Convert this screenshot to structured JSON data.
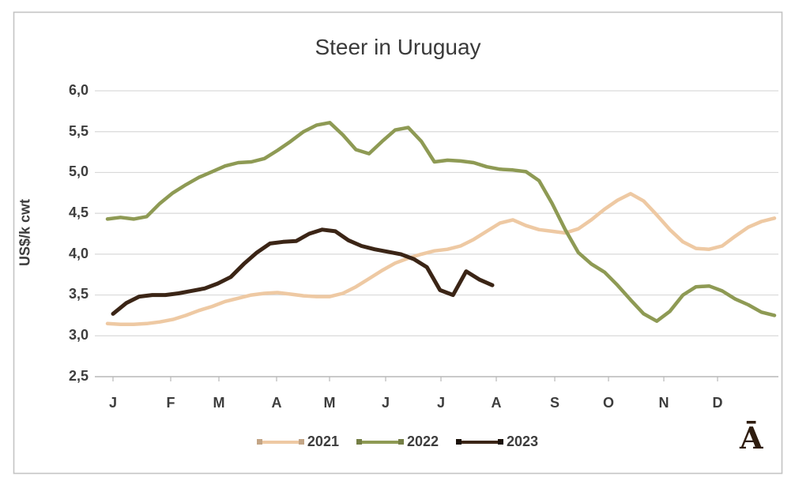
{
  "title": "Steer in Uruguay",
  "watermark": "Ā",
  "colors": {
    "series_2021": "#eec9a3",
    "series_2022": "#8e9a54",
    "series_2023": "#3b2516",
    "gridline": "#d9d9d9",
    "axis_line": "#b7b7b7",
    "frame": "#c4c4c4",
    "text": "#3d3d3d"
  },
  "chart_data": {
    "type": "line",
    "title": "Steer in Uruguay",
    "xlabel": "",
    "ylabel": "US$/k cwt",
    "ylim": [
      2.5,
      6.0
    ],
    "y_tick_step": 0.5,
    "grid": true,
    "legend_position": "bottom",
    "y_tick_labels": [
      "6,0",
      "5,5",
      "5,0",
      "4,5",
      "4,0",
      "3,5",
      "3,0",
      "2,5"
    ],
    "x_tick_labels": [
      "J",
      "F",
      "M",
      "A",
      "M",
      "J",
      "J",
      "A",
      "S",
      "O",
      "N",
      "D"
    ],
    "x_unit": "weekly points, Jan–Dec",
    "series": [
      {
        "name": "2021",
        "color": "#eec9a3",
        "months_covered": "Jan-Dec",
        "values": [
          3.15,
          3.14,
          3.14,
          3.15,
          3.17,
          3.2,
          3.25,
          3.31,
          3.36,
          3.42,
          3.46,
          3.5,
          3.52,
          3.53,
          3.51,
          3.49,
          3.48,
          3.48,
          3.52,
          3.6,
          3.7,
          3.8,
          3.89,
          3.95,
          4.0,
          4.04,
          4.06,
          4.1,
          4.18,
          4.28,
          4.38,
          4.42,
          4.35,
          4.3,
          4.28,
          4.26,
          4.31,
          4.42,
          4.55,
          4.66,
          4.74,
          4.65,
          4.48,
          4.3,
          4.15,
          4.07,
          4.06,
          4.1,
          4.22,
          4.33,
          4.4,
          4.44
        ]
      },
      {
        "name": "2022",
        "color": "#8e9a54",
        "months_covered": "Jan-Dec",
        "values": [
          4.43,
          4.45,
          4.43,
          4.46,
          4.62,
          4.75,
          4.85,
          4.94,
          5.01,
          5.08,
          5.12,
          5.13,
          5.17,
          5.27,
          5.38,
          5.5,
          5.58,
          5.61,
          5.46,
          5.28,
          5.23,
          5.38,
          5.52,
          5.55,
          5.38,
          5.13,
          5.15,
          5.14,
          5.12,
          5.07,
          5.04,
          5.03,
          5.01,
          4.9,
          4.62,
          4.3,
          4.02,
          3.88,
          3.78,
          3.62,
          3.44,
          3.27,
          3.18,
          3.3,
          3.5,
          3.6,
          3.61,
          3.55,
          3.45,
          3.38,
          3.29,
          3.25
        ]
      },
      {
        "name": "2023",
        "color": "#3b2516",
        "months_covered": "Jan-early Aug",
        "values": [
          3.27,
          3.4,
          3.48,
          3.5,
          3.5,
          3.52,
          3.55,
          3.58,
          3.64,
          3.72,
          3.88,
          4.02,
          4.13,
          4.15,
          4.16,
          4.25,
          4.3,
          4.28,
          4.17,
          4.1,
          4.06,
          4.03,
          4.0,
          3.94,
          3.84,
          3.56,
          3.5,
          3.79,
          3.69,
          3.62
        ]
      }
    ]
  }
}
